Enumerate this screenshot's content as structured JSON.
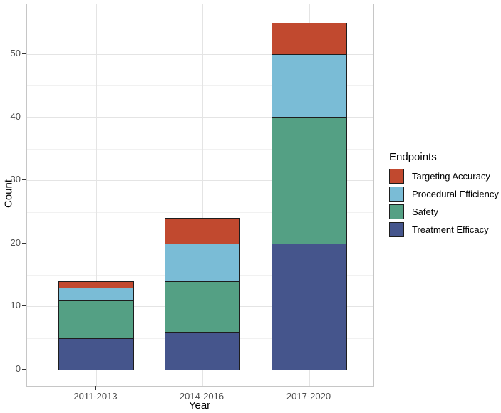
{
  "chart_data": {
    "type": "bar",
    "stacked": true,
    "title": "",
    "xlabel": "Year",
    "ylabel": "Count",
    "categories": [
      "2011-2013",
      "2014-2016",
      "2017-2020"
    ],
    "series": [
      {
        "name": "Treatment Efficacy",
        "color": "#45558c",
        "values": [
          5,
          6,
          20
        ]
      },
      {
        "name": "Safety",
        "color": "#54a084",
        "values": [
          6,
          8,
          20
        ]
      },
      {
        "name": "Procedural Efficiency",
        "color": "#7abcd6",
        "values": [
          2,
          6,
          10
        ]
      },
      {
        "name": "Targeting Accuracy",
        "color": "#c1492f",
        "values": [
          1,
          4,
          5
        ]
      }
    ],
    "stack_totals": [
      14,
      24,
      55
    ],
    "legend": {
      "title": "Endpoints",
      "position": "right",
      "entries": [
        "Targeting Accuracy",
        "Procedural Efficiency",
        "Safety",
        "Treatment Efficacy"
      ]
    },
    "y_axis": {
      "ticks": [
        0,
        10,
        20,
        30,
        40,
        50
      ],
      "minor_ticks": [
        5,
        15,
        25,
        35,
        45,
        55
      ],
      "range": [
        0,
        55
      ]
    },
    "grid": true,
    "bar_outline_color": "#1d1d1d"
  }
}
